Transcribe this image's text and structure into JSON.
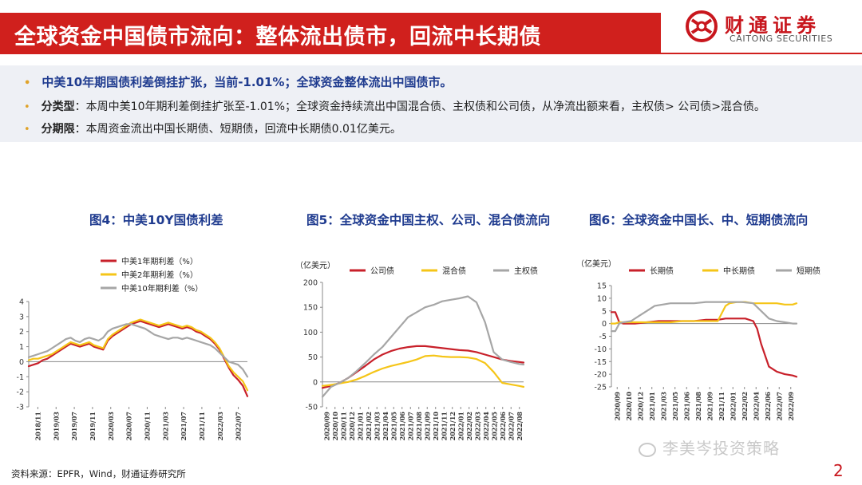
{
  "header": {
    "title": "全球资金中国债市流向：整体流出债市，回流中长期债",
    "logo_cn": "财通证券",
    "logo_en": "CAITONG SECURITIES",
    "accent": "#d0201d"
  },
  "summary": {
    "headline": "中美10年期国债利差倒挂扩张，当前-1.01%；全球资金整体流出中国债市。",
    "type_label": "分类型",
    "type_text": "：本周中美10年期利差倒挂扩张至-1.01%；全球资金持续流出中国混合债、主权债和公司债，从净流出额来看，主权债> 公司债>混合债。",
    "term_label": "分期限",
    "term_text": "：本周资金流出中国长期债、短期债，回流中长期债0.01亿美元。"
  },
  "footer": {
    "source": "资料来源：EPFR，Wind，财通证券研究所",
    "watermark": "李美岑投资策略",
    "page": "2"
  },
  "chart_data": [
    {
      "type": "line",
      "title": "图4：中美10Y国债利差",
      "ylim": [
        -3,
        4
      ],
      "yticks": [
        -3,
        -2,
        -1,
        0,
        1,
        2,
        3,
        4
      ],
      "x_ticks": [
        "2018/11",
        "2019/03",
        "2019/07",
        "2019/11",
        "2020/03",
        "2020/07",
        "2020/11",
        "2021/03",
        "2021/07",
        "2021/11",
        "2022/03",
        "2022/07"
      ],
      "x_range": [
        0,
        47
      ],
      "legend_position": "top-left",
      "series": [
        {
          "name": "中美1年期利差（%）",
          "color": "#c8202a",
          "x": [
            0,
            1,
            2,
            3,
            4,
            5,
            6,
            7,
            8,
            9,
            10,
            11,
            12,
            13,
            14,
            15,
            16,
            17,
            18,
            19,
            20,
            21,
            22,
            23,
            24,
            25,
            26,
            27,
            28,
            29,
            30,
            31,
            32,
            33,
            34,
            35,
            36,
            37,
            38,
            39,
            40,
            41,
            42,
            43,
            44,
            45,
            46,
            47
          ],
          "y": [
            -0.3,
            -0.2,
            -0.1,
            0.1,
            0.2,
            0.4,
            0.6,
            0.8,
            1.0,
            1.2,
            1.1,
            1.0,
            1.1,
            1.2,
            1.0,
            0.9,
            0.8,
            1.4,
            1.7,
            1.9,
            2.1,
            2.3,
            2.5,
            2.6,
            2.7,
            2.6,
            2.5,
            2.4,
            2.3,
            2.4,
            2.5,
            2.4,
            2.3,
            2.2,
            2.3,
            2.2,
            2.0,
            1.9,
            1.7,
            1.5,
            1.2,
            0.8,
            0.2,
            -0.4,
            -0.9,
            -1.2,
            -1.6,
            -2.3
          ]
        },
        {
          "name": "中美2年期利差（%）",
          "color": "#f5c518",
          "x": [
            0,
            1,
            2,
            3,
            4,
            5,
            6,
            7,
            8,
            9,
            10,
            11,
            12,
            13,
            14,
            15,
            16,
            17,
            18,
            19,
            20,
            21,
            22,
            23,
            24,
            25,
            26,
            27,
            28,
            29,
            30,
            31,
            32,
            33,
            34,
            35,
            36,
            37,
            38,
            39,
            40,
            41,
            42,
            43,
            44,
            45,
            46,
            47
          ],
          "y": [
            0.1,
            0.2,
            0.2,
            0.3,
            0.4,
            0.5,
            0.7,
            0.9,
            1.1,
            1.3,
            1.2,
            1.1,
            1.2,
            1.3,
            1.1,
            1.0,
            0.9,
            1.5,
            1.8,
            2.0,
            2.2,
            2.4,
            2.6,
            2.7,
            2.8,
            2.7,
            2.6,
            2.5,
            2.4,
            2.5,
            2.6,
            2.5,
            2.4,
            2.3,
            2.4,
            2.3,
            2.1,
            2.0,
            1.8,
            1.6,
            1.3,
            0.9,
            0.3,
            -0.3,
            -0.7,
            -1.0,
            -1.3,
            -1.9
          ]
        },
        {
          "name": "中美10年期利差（%）",
          "color": "#a6a6a6",
          "x": [
            0,
            1,
            2,
            3,
            4,
            5,
            6,
            7,
            8,
            9,
            10,
            11,
            12,
            13,
            14,
            15,
            16,
            17,
            18,
            19,
            20,
            21,
            22,
            23,
            24,
            25,
            26,
            27,
            28,
            29,
            30,
            31,
            32,
            33,
            34,
            35,
            36,
            37,
            38,
            39,
            40,
            41,
            42,
            43,
            44,
            45,
            46,
            47
          ],
          "y": [
            0.3,
            0.4,
            0.5,
            0.6,
            0.7,
            0.9,
            1.1,
            1.3,
            1.5,
            1.6,
            1.4,
            1.3,
            1.5,
            1.6,
            1.5,
            1.4,
            1.6,
            2.0,
            2.2,
            2.3,
            2.4,
            2.5,
            2.5,
            2.4,
            2.3,
            2.2,
            2.0,
            1.8,
            1.7,
            1.6,
            1.5,
            1.6,
            1.6,
            1.5,
            1.6,
            1.5,
            1.4,
            1.3,
            1.2,
            1.1,
            0.9,
            0.6,
            0.3,
            0.0,
            -0.1,
            -0.2,
            -0.5,
            -1.0
          ]
        }
      ]
    },
    {
      "type": "line",
      "title": "图5：全球资金中国主权、公司、混合债流向",
      "unit": "（亿美元）",
      "ylim": [
        -50,
        200
      ],
      "yticks": [
        -50,
        0,
        50,
        100,
        150,
        200
      ],
      "x_ticks": [
        "2020/09",
        "2020/10",
        "2020/11",
        "2020/12",
        "2021/01",
        "2021/02",
        "2021/03",
        "2021/04",
        "2021/05",
        "2021/06",
        "2021/07",
        "2021/08",
        "2021/09",
        "2021/10",
        "2021/11",
        "2021/12",
        "2022/01",
        "2022/02",
        "2022/03",
        "2022/04",
        "2022/05",
        "2022/06",
        "2022/07",
        "2022/08"
      ],
      "x_range": [
        0,
        47
      ],
      "legend_position": "top",
      "series": [
        {
          "name": "公司债",
          "color": "#c8202a",
          "x": [
            0,
            2,
            4,
            6,
            8,
            10,
            12,
            14,
            16,
            18,
            20,
            22,
            24,
            26,
            28,
            30,
            32,
            34,
            36,
            38,
            40,
            42,
            44,
            46,
            47
          ],
          "y": [
            -12,
            -8,
            -2,
            8,
            20,
            32,
            45,
            55,
            62,
            67,
            70,
            72,
            72,
            70,
            68,
            66,
            64,
            63,
            60,
            55,
            50,
            45,
            42,
            40,
            39
          ]
        },
        {
          "name": "混合债",
          "color": "#f5c518",
          "x": [
            0,
            2,
            4,
            6,
            8,
            10,
            12,
            14,
            16,
            18,
            20,
            22,
            24,
            26,
            28,
            30,
            32,
            34,
            36,
            38,
            40,
            42,
            44,
            46,
            47
          ],
          "y": [
            -8,
            -6,
            -3,
            0,
            5,
            12,
            20,
            27,
            32,
            36,
            40,
            45,
            52,
            53,
            51,
            50,
            50,
            49,
            46,
            38,
            20,
            -2,
            -5,
            -8,
            -10
          ]
        },
        {
          "name": "主权债",
          "color": "#a6a6a6",
          "x": [
            0,
            2,
            4,
            6,
            8,
            10,
            12,
            14,
            16,
            18,
            20,
            22,
            24,
            26,
            28,
            30,
            32,
            34,
            36,
            38,
            40,
            42,
            44,
            46,
            47
          ],
          "y": [
            -30,
            -10,
            -2,
            8,
            22,
            38,
            55,
            70,
            90,
            110,
            130,
            140,
            150,
            155,
            162,
            165,
            168,
            172,
            160,
            120,
            60,
            45,
            40,
            36,
            35
          ]
        }
      ]
    },
    {
      "type": "line",
      "title": "图6：全球资金中国长、中、短期债流向",
      "unit": "（亿美元）",
      "ylim": [
        -25,
        15
      ],
      "yticks": [
        -25,
        -20,
        -15,
        -10,
        -5,
        0,
        5,
        10,
        15
      ],
      "x_ticks": [
        "2020/09",
        "2020/10",
        "2020/12",
        "2021/01",
        "2021/03",
        "2021/05",
        "2021/06",
        "2021/08",
        "2021/09",
        "2021/11",
        "2022/01",
        "2022/02",
        "2022/04",
        "2022/06",
        "2022/07",
        "2022/09"
      ],
      "x_range": [
        0,
        47
      ],
      "legend_position": "top",
      "series": [
        {
          "name": "长期债",
          "color": "#c8202a",
          "x": [
            0,
            1,
            2,
            3,
            6,
            9,
            12,
            15,
            18,
            21,
            24,
            27,
            29,
            30,
            32,
            34,
            36,
            37,
            38,
            40,
            42,
            44,
            46,
            47
          ],
          "y": [
            4.5,
            4.5,
            0.5,
            0,
            0,
            0.5,
            1,
            1,
            1,
            1,
            1.5,
            1.5,
            2,
            2,
            2,
            2,
            1,
            -2,
            -8,
            -17,
            -19,
            -20,
            -20.5,
            -21
          ]
        },
        {
          "name": "中长期债",
          "color": "#f5c518",
          "x": [
            0,
            1,
            2,
            3,
            6,
            9,
            12,
            15,
            18,
            21,
            24,
            27,
            29,
            30,
            32,
            34,
            36,
            38,
            40,
            42,
            44,
            46,
            47
          ],
          "y": [
            0,
            0,
            0.5,
            0.5,
            0.5,
            0.5,
            0.5,
            0.5,
            1,
            1,
            1,
            1,
            7,
            8,
            8.5,
            8.5,
            8,
            8,
            8,
            8,
            7.5,
            7.5,
            8
          ]
        },
        {
          "name": "短期债",
          "color": "#a6a6a6",
          "x": [
            0,
            1,
            2,
            3,
            5,
            7,
            9,
            11,
            13,
            15,
            18,
            21,
            24,
            27,
            30,
            33,
            36,
            38,
            40,
            42,
            44,
            46,
            47
          ],
          "y": [
            -3,
            -3,
            0,
            0.5,
            1,
            3,
            5,
            7,
            7.5,
            8,
            8,
            8,
            8.5,
            8.5,
            8.5,
            8.5,
            8,
            5,
            2,
            1,
            0.5,
            0,
            0
          ]
        }
      ]
    }
  ]
}
